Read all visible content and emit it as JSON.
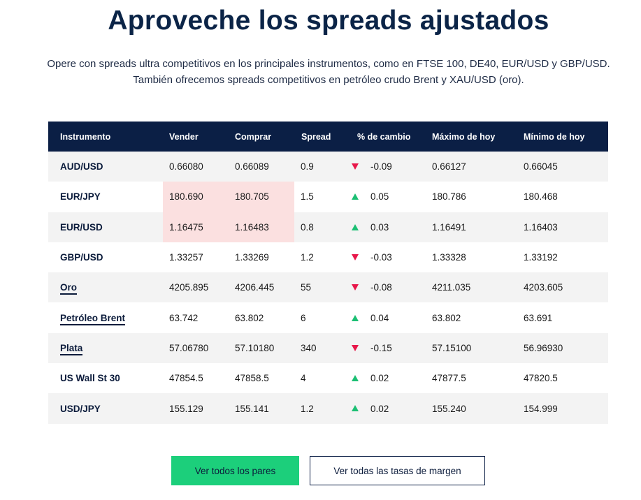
{
  "heading": "Aproveche los spreads ajustados",
  "subtitle_line1": "Opere con spreads ultra competitivos en los principales instrumentos, como en FTSE 100, DE40, EUR/USD y GBP/USD.",
  "subtitle_line2": "También ofrecemos spreads competitivos en petróleo crudo Brent y XAU/USD (oro).",
  "table": {
    "headers": [
      "Instrumento",
      "Vender",
      "Comprar",
      "Spread",
      "% de cambio",
      "Máximo de hoy",
      "Mínimo de hoy"
    ],
    "rows": [
      {
        "instrument": "AUD/USD",
        "sell": "0.66080",
        "buy": "0.66089",
        "spread": "0.9",
        "direction": "down",
        "change": "-0.09",
        "high": "0.66127",
        "low": "0.66045"
      },
      {
        "instrument": "EUR/JPY",
        "sell": "180.690",
        "buy": "180.705",
        "spread": "1.5",
        "direction": "up",
        "change": "0.05",
        "high": "180.786",
        "low": "180.468"
      },
      {
        "instrument": "EUR/USD",
        "sell": "1.16475",
        "buy": "1.16483",
        "spread": "0.8",
        "direction": "up",
        "change": "0.03",
        "high": "1.16491",
        "low": "1.16403"
      },
      {
        "instrument": "GBP/USD",
        "sell": "1.33257",
        "buy": "1.33269",
        "spread": "1.2",
        "direction": "down",
        "change": "-0.03",
        "high": "1.33328",
        "low": "1.33192"
      },
      {
        "instrument": "Oro",
        "sell": "4205.895",
        "buy": "4206.445",
        "spread": "55",
        "direction": "down",
        "change": "-0.08",
        "high": "4211.035",
        "low": "4203.605"
      },
      {
        "instrument": "Petróleo Brent",
        "sell": "63.742",
        "buy": "63.802",
        "spread": "6",
        "direction": "up",
        "change": "0.04",
        "high": "63.802",
        "low": "63.691"
      },
      {
        "instrument": "Plata",
        "sell": "57.06780",
        "buy": "57.10180",
        "spread": "340",
        "direction": "down",
        "change": "-0.15",
        "high": "57.15100",
        "low": "56.96930"
      },
      {
        "instrument": "US Wall St 30",
        "sell": "47854.5",
        "buy": "47858.5",
        "spread": "4",
        "direction": "up",
        "change": "0.02",
        "high": "47877.5",
        "low": "47820.5"
      },
      {
        "instrument": "USD/JPY",
        "sell": "155.129",
        "buy": "155.141",
        "spread": "1.2",
        "direction": "up",
        "change": "0.02",
        "high": "155.240",
        "low": "154.999"
      }
    ]
  },
  "buttons": {
    "all_pairs": "Ver todos los pares",
    "margin_rates": "Ver todas las tasas de margen"
  },
  "colors": {
    "navy": "#0b1f45",
    "green_button": "#1ccf7b",
    "up_arrow": "#1bbf73",
    "down_arrow": "#e8174a",
    "highlight": "#fbe0e0"
  }
}
